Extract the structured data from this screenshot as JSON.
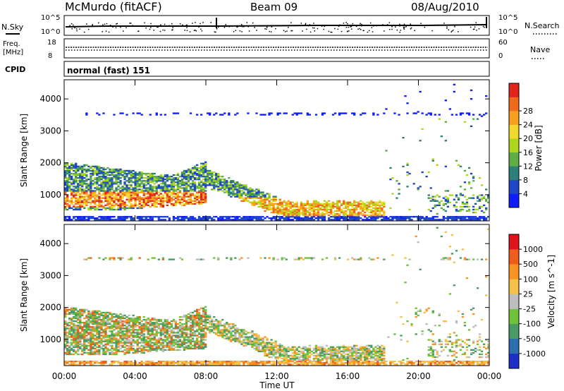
{
  "header": {
    "station": "McMurdo (fitACF)",
    "beam": "Beam 09",
    "date": "08/Aug/2010"
  },
  "status_panels": {
    "nsky": {
      "label": "N.Sky",
      "ticks": [
        "10^5",
        "10^0"
      ]
    },
    "freq": {
      "label_top": "Freq.",
      "label_unit": "[MHz]",
      "ticks": [
        "18",
        "8"
      ]
    },
    "nsearch": {
      "label": "N.Search",
      "ticks": [
        "10^5",
        "10^0"
      ]
    },
    "nave": {
      "label": "Nave",
      "ticks": [
        "60",
        "0"
      ]
    },
    "cpid": {
      "label": "CPID",
      "value": "normal (fast) 151"
    }
  },
  "chart_data": [
    {
      "type": "heatmap",
      "variable": "Power",
      "ylabel": "Slant Range [km]",
      "y_ticks": [
        1000,
        2000,
        3000,
        4000
      ],
      "ylim": [
        180,
        4600
      ],
      "xlim_hours": [
        0,
        24
      ],
      "colorbar": {
        "label": "Power [dB]",
        "ticks": [
          "4",
          "8",
          "12",
          "16",
          "20",
          "24",
          "28"
        ],
        "colors": [
          "#0f1dfb",
          "#1e47c8",
          "#2f7f79",
          "#5fae45",
          "#aed61d",
          "#f2d92d",
          "#f7a21f",
          "#ef6a1b",
          "#e0261b"
        ]
      },
      "features": [
        {
          "name": "E-region / ground scatter layer",
          "hours": [
            0,
            24
          ],
          "range_km": [
            180,
            350
          ]
        },
        {
          "name": "Morning backscatter arc",
          "hours": [
            0,
            8
          ],
          "range_km": [
            600,
            2000
          ],
          "peak_db": 28
        },
        {
          "name": "Afternoon descending layer",
          "hours": [
            9,
            18
          ],
          "range_km": [
            400,
            1100
          ],
          "peak_db": 24
        },
        {
          "name": "Evening patches",
          "hours": [
            20.5,
            24
          ],
          "range_km": [
            400,
            1000
          ],
          "peak_db": 12
        },
        {
          "name": "Faint band near 3500 km",
          "hours": [
            1,
            24
          ],
          "range_km": [
            3450,
            3550
          ],
          "peak_db": 4
        }
      ]
    },
    {
      "type": "heatmap",
      "variable": "Velocity",
      "ylabel": "Slant Range [km]",
      "y_ticks": [
        1000,
        2000,
        3000,
        4000
      ],
      "ylim": [
        180,
        4600
      ],
      "xlim_hours": [
        0,
        24
      ],
      "colorbar": {
        "label": "Velocity [m s^-1]",
        "ticks": [
          "1000",
          "500",
          "100",
          "25",
          "-25",
          "-100",
          "-500",
          "-1000"
        ],
        "colors": [
          "#1e2fc9",
          "#2d6fae",
          "#4a9a63",
          "#6fc33b",
          "#bdbdbd",
          "#f6c04a",
          "#f79423",
          "#ef5d1c",
          "#e0121b"
        ]
      },
      "features": [
        {
          "name": "Morning region (mixed, mostly positive)",
          "hours": [
            0,
            8
          ],
          "range_km": [
            600,
            2000
          ]
        },
        {
          "name": "Afternoon layer (mixed)",
          "hours": [
            9,
            18
          ],
          "range_km": [
            400,
            1100
          ]
        },
        {
          "name": "Evening patches",
          "hours": [
            20.5,
            24
          ],
          "range_km": [
            400,
            1000
          ]
        }
      ]
    }
  ],
  "x_axis": {
    "ticks": [
      "00:00",
      "04:00",
      "08:00",
      "12:00",
      "16:00",
      "20:00",
      "00:00"
    ],
    "label": "Time UT"
  }
}
